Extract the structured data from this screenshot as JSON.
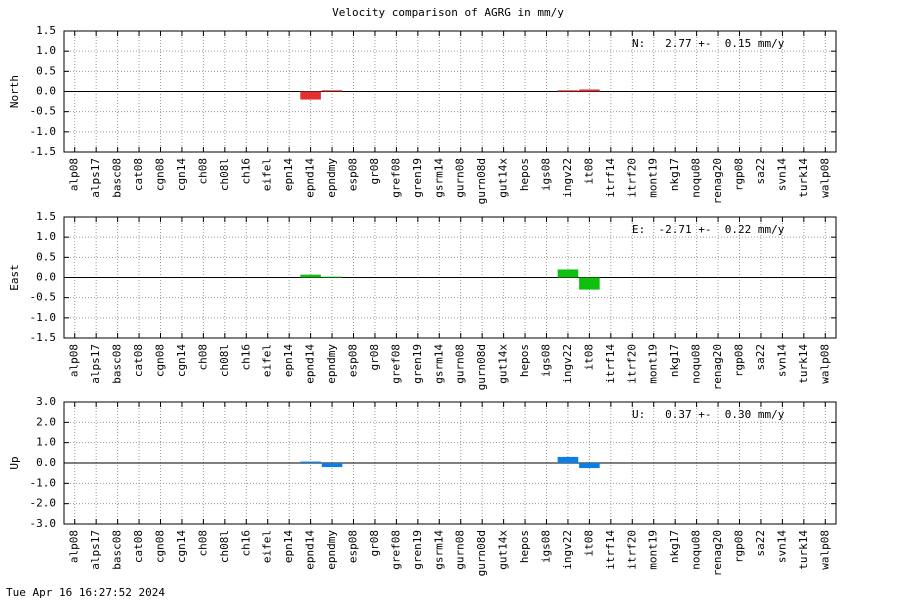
{
  "title": "Velocity comparison of AGRG in mm/y",
  "timestamp": "Tue Apr 16 16:27:52 2024",
  "chart_data": [
    {
      "type": "bar",
      "ylabel": "North",
      "annotation": "N:   2.77 +-  0.15 mm/y",
      "categories": [
        "alp08",
        "alps17",
        "basc08",
        "cat08",
        "cgn08",
        "cgn14",
        "ch08",
        "ch08l",
        "ch16",
        "eifel",
        "epn14",
        "epnd14",
        "epndmy",
        "esp08",
        "gr08",
        "gref08",
        "gren19",
        "gsrm14",
        "gurn08",
        "gurn08d",
        "gut14x",
        "hepos",
        "igs08",
        "ingv22",
        "it08",
        "itrf14",
        "itrf20",
        "mont19",
        "nkg17",
        "noqu08",
        "renag20",
        "rgp08",
        "sa22",
        "svn14",
        "turk14",
        "walp08"
      ],
      "values": [
        0,
        0,
        0,
        0,
        0,
        0,
        0,
        0,
        0,
        0,
        0,
        -0.2,
        0.03,
        0,
        0,
        0,
        0,
        0,
        0,
        0,
        0,
        0,
        0,
        0.03,
        0.05,
        0,
        0,
        0,
        0,
        0,
        0,
        0,
        0,
        0,
        0,
        0
      ],
      "color": "#e03030",
      "ylim": [
        -1.5,
        1.5
      ],
      "yticks": [
        -1.5,
        {
          "value": -1,
          "label": "-1.0"
        },
        -0.5,
        {
          "value": 0,
          "label": "0.0"
        },
        0.5,
        {
          "value": 1,
          "label": "1.0"
        },
        1.5
      ],
      "grid": true
    },
    {
      "type": "bar",
      "ylabel": "East",
      "annotation": "E:  -2.71 +-  0.22 mm/y",
      "categories": [
        "alp08",
        "alps17",
        "basc08",
        "cat08",
        "cgn08",
        "cgn14",
        "ch08",
        "ch08l",
        "ch16",
        "eifel",
        "epn14",
        "epnd14",
        "epndmy",
        "esp08",
        "gr08",
        "gref08",
        "gren19",
        "gsrm14",
        "gurn08",
        "gurn08d",
        "gut14x",
        "hepos",
        "igs08",
        "ingv22",
        "it08",
        "itrf14",
        "itrf20",
        "mont19",
        "nkg17",
        "noqu08",
        "renag20",
        "rgp08",
        "sa22",
        "svn14",
        "turk14",
        "walp08"
      ],
      "values": [
        0,
        0,
        0,
        0,
        0,
        0,
        0,
        0,
        0,
        0,
        0,
        0.07,
        0.02,
        0,
        0,
        0,
        0,
        0,
        0,
        0,
        0,
        0,
        0,
        0.2,
        -0.3,
        0,
        0,
        0,
        0,
        0,
        0,
        0,
        0,
        0,
        0,
        0
      ],
      "color": "#10c010",
      "ylim": [
        -1.5,
        1.5
      ],
      "yticks": [
        -1.5,
        {
          "value": -1,
          "label": "-1.0"
        },
        -0.5,
        {
          "value": 0,
          "label": "0.0"
        },
        0.5,
        {
          "value": 1,
          "label": "1.0"
        },
        1.5
      ],
      "grid": true
    },
    {
      "type": "bar",
      "ylabel": "Up",
      "annotation": "U:   0.37 +-  0.30 mm/y",
      "categories": [
        "alp08",
        "alps17",
        "basc08",
        "cat08",
        "cgn08",
        "cgn14",
        "ch08",
        "ch08l",
        "ch16",
        "eifel",
        "epn14",
        "epnd14",
        "epndmy",
        "esp08",
        "gr08",
        "gref08",
        "gren19",
        "gsrm14",
        "gurn08",
        "gurn08d",
        "gut14x",
        "hepos",
        "igs08",
        "ingv22",
        "it08",
        "itrf14",
        "itrf20",
        "mont19",
        "nkg17",
        "noqu08",
        "renag20",
        "rgp08",
        "sa22",
        "svn14",
        "turk14",
        "walp08"
      ],
      "values": [
        0,
        0,
        0,
        0,
        0,
        0,
        0,
        0,
        0,
        0,
        0,
        0.07,
        -0.2,
        0,
        0,
        0,
        0,
        0,
        0,
        0,
        0,
        0,
        0,
        0.3,
        -0.25,
        0,
        0,
        0,
        0,
        0,
        0,
        0,
        0,
        0,
        0,
        0
      ],
      "color": "#0a7fe8",
      "ylim": [
        -3,
        3
      ],
      "yticks": [
        {
          "value": -3,
          "label": "-3.0"
        },
        {
          "value": -2,
          "label": "-2.0"
        },
        {
          "value": -1,
          "label": "-1.0"
        },
        {
          "value": 0,
          "label": "0.0"
        },
        {
          "value": 1,
          "label": "1.0"
        },
        {
          "value": 2,
          "label": "2.0"
        },
        {
          "value": 3,
          "label": "3.0"
        }
      ],
      "grid": true
    }
  ]
}
